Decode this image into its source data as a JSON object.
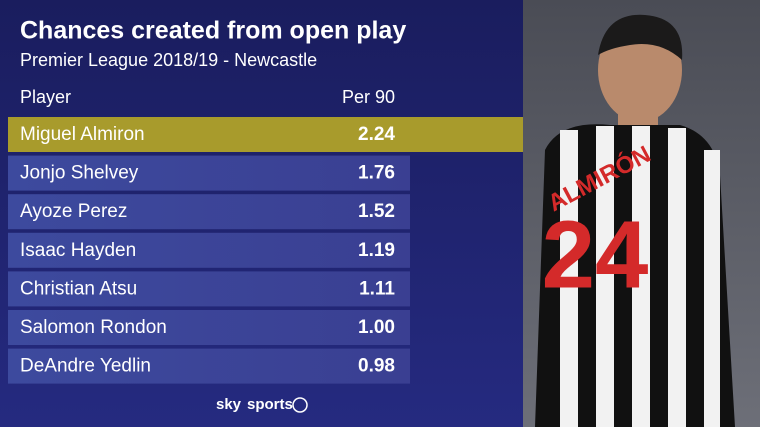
{
  "header": {
    "title": "Chances created from open play",
    "subtitle": "Premier League 2018/19 - Newcastle"
  },
  "table": {
    "columns": [
      "Player",
      "Per 90"
    ],
    "rows": [
      [
        "Miguel Almiron",
        "2.24"
      ],
      [
        "Jonjo Shelvey",
        "1.76"
      ],
      [
        "Ayoze Perez",
        "1.52"
      ],
      [
        "Isaac Hayden",
        "1.19"
      ],
      [
        "Christian Atsu",
        "1.11"
      ],
      [
        "Salomon Rondon",
        "1.00"
      ],
      [
        "DeAndre Yedlin",
        "0.98"
      ]
    ]
  },
  "photo": {
    "shirt_name": "ALMIRÓN",
    "shirt_number": "24"
  },
  "logo": {
    "brand": "sky",
    "product": "sports"
  }
}
